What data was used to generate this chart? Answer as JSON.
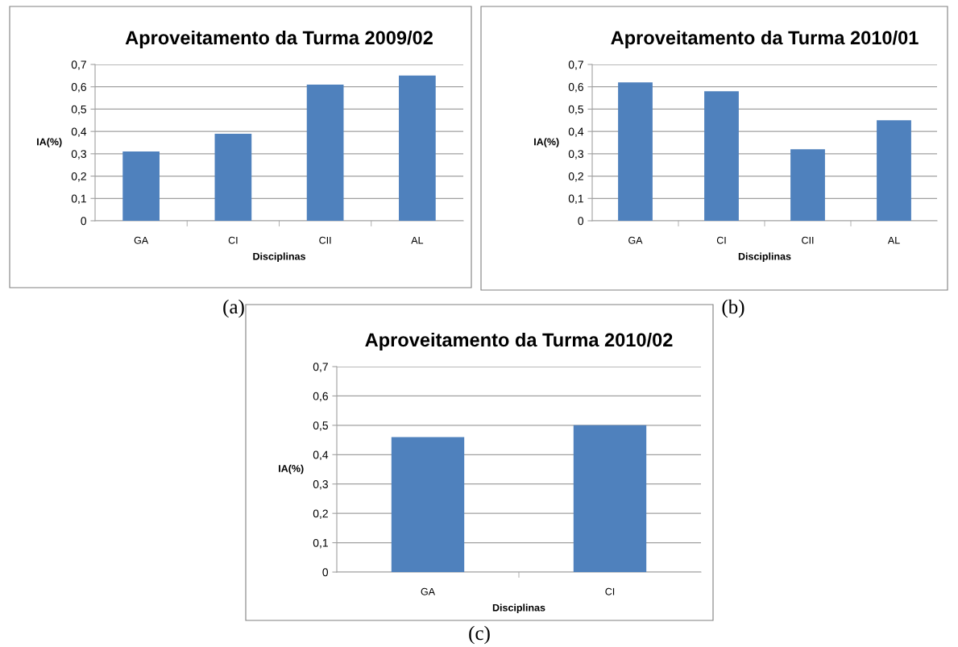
{
  "chart_data": [
    {
      "type": "bar",
      "title": "Aproveitamento da Turma 2009/02",
      "xlabel": "Disciplinas",
      "ylabel": "IA(%)",
      "categories": [
        "GA",
        "CI",
        "CII",
        "AL"
      ],
      "values": [
        0.31,
        0.39,
        0.61,
        0.65
      ],
      "color": "#4f81bd",
      "ylim": [
        0,
        0.7
      ],
      "yticks": [
        0,
        {
          "value": 0.1,
          "label": "0,1"
        },
        {
          "value": 0.2,
          "label": "0,2"
        },
        {
          "value": 0.3,
          "label": "0,3"
        },
        {
          "value": 0.4,
          "label": "0,4"
        },
        {
          "value": 0.5,
          "label": "0,5"
        },
        {
          "value": 0.6,
          "label": "0,6"
        },
        {
          "value": 0.7,
          "label": "0,7"
        }
      ],
      "grid": "y",
      "annotations": [
        "(a)"
      ]
    },
    {
      "type": "bar",
      "title": "Aproveitamento da Turma 2010/01",
      "xlabel": "Disciplinas",
      "ylabel": "IA(%)",
      "categories": [
        "GA",
        "CI",
        "CII",
        "AL"
      ],
      "values": [
        0.62,
        0.58,
        0.32,
        0.45
      ],
      "color": "#4f81bd",
      "ylim": [
        0,
        0.7
      ],
      "yticks": [
        0,
        {
          "value": 0.1,
          "label": "0,1"
        },
        {
          "value": 0.2,
          "label": "0,2"
        },
        {
          "value": 0.3,
          "label": "0,3"
        },
        {
          "value": 0.4,
          "label": "0,4"
        },
        {
          "value": 0.5,
          "label": "0,5"
        },
        {
          "value": 0.6,
          "label": "0,6"
        },
        {
          "value": 0.7,
          "label": "0,7"
        }
      ],
      "grid": "y",
      "annotations": [
        "(b)"
      ]
    },
    {
      "type": "bar",
      "title": "Aproveitamento da Turma 2010/02",
      "xlabel": "Disciplinas",
      "ylabel": "IA(%)",
      "categories": [
        "GA",
        "CI"
      ],
      "values": [
        0.46,
        0.5
      ],
      "color": "#4f81bd",
      "ylim": [
        0,
        0.7
      ],
      "yticks": [
        0,
        {
          "value": 0.1,
          "label": "0,1"
        },
        {
          "value": 0.2,
          "label": "0,2"
        },
        {
          "value": 0.3,
          "label": "0,3"
        },
        {
          "value": 0.4,
          "label": "0,4"
        },
        {
          "value": 0.5,
          "label": "0,5"
        },
        {
          "value": 0.6,
          "label": "0,6"
        },
        {
          "value": 0.7,
          "label": "0,7"
        }
      ],
      "grid": "y",
      "annotations": [
        "(c)"
      ]
    }
  ]
}
